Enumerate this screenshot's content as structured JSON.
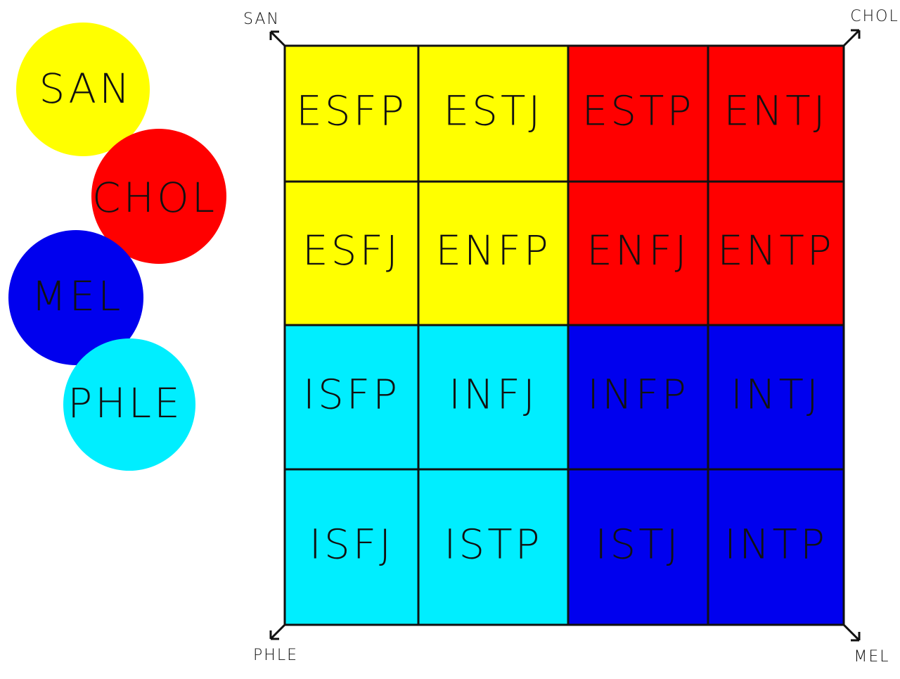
{
  "legend": [
    "SAN",
    "CHOL",
    "MEL",
    "PHLE"
  ],
  "corners": {
    "top_left": "SAN",
    "top_right": "CHOL",
    "bottom_left": "PHLE",
    "bottom_right": "MEL"
  },
  "grid": [
    [
      "ESFP",
      "ESTJ",
      "ESTP",
      "ENTJ"
    ],
    [
      "ESFJ",
      "ENFP",
      "ENFJ",
      "ENTP"
    ],
    [
      "ISFP",
      "INFJ",
      "INFP",
      "INTJ"
    ],
    [
      "ISFJ",
      "ISTP",
      "ISTJ",
      "INTP"
    ]
  ]
}
